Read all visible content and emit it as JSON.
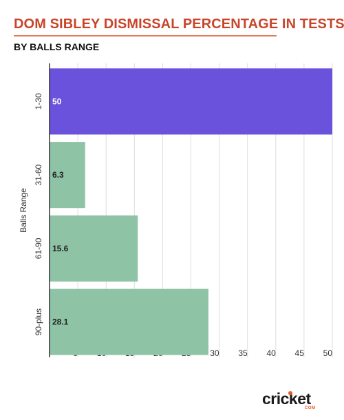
{
  "header": {
    "title": "DOM SIBLEY DISMISSAL PERCENTAGE IN TESTS",
    "subtitle": "BY BALLS RANGE"
  },
  "brand": {
    "logo_text": "cricket",
    "logo_sub": "COM"
  },
  "colors": {
    "highlight_bar": "#6a52dc",
    "bar": "#8fc3a6",
    "title": "#c8452a",
    "grid": "#dddddd",
    "axis": "#333333",
    "logo_accent": "#e85a2a"
  },
  "chart_data": {
    "type": "bar",
    "orientation": "horizontal",
    "title": "DOM SIBLEY DISMISSAL PERCENTAGE IN TESTS",
    "subtitle": "BY BALLS RANGE",
    "ylabel": "Balls Range",
    "xlabel": "",
    "categories": [
      "1-30",
      "31-60",
      "61-90",
      "90-plus"
    ],
    "values": [
      50,
      6.3,
      15.6,
      28.1
    ],
    "data_labels": [
      "50",
      "6.3",
      "15.6",
      "28.1"
    ],
    "highlight_index": 0,
    "xlim": [
      0,
      50
    ],
    "x_ticks": [
      5,
      10,
      15,
      20,
      25,
      30,
      35,
      40,
      45,
      50
    ],
    "grid": true,
    "legend": "none"
  }
}
